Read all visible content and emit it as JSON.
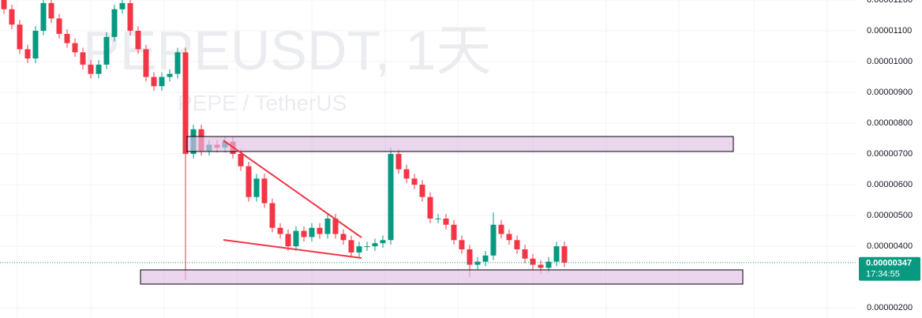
{
  "chart_data": {
    "type": "candlestick",
    "title": "PEPEUSDT, 1天",
    "subtitle": "PEPE / TetherUS",
    "open": [
      1.2e-05,
      1.17e-05,
      1.12e-05,
      1.04e-05,
      1.01e-05,
      1.1e-05,
      1.19e-05,
      1.14e-05,
      1.09e-05,
      1.06e-05,
      1.03e-05,
      9.9e-06,
      9.6e-06,
      9.9e-06,
      1.08e-05,
      1.17e-05,
      1.19e-05,
      1.1e-05,
      1.04e-05,
      9.5e-06,
      9.2e-06,
      9.5e-06,
      9.6e-06,
      1.03e-05,
      7e-06,
      7.8e-06,
      7.1e-06,
      7.3e-06,
      7.2e-06,
      7.4e-06,
      7e-06,
      6.6e-06,
      5.6e-06,
      6.2e-06,
      5.4e-06,
      4.6e-06,
      4.4e-06,
      4e-06,
      4.5e-06,
      4.3e-06,
      4.6e-06,
      4.4e-06,
      4.9e-06,
      4.4e-06,
      4.2e-06,
      3.8e-06,
      4e-06,
      4e-06,
      4.1e-06,
      4.2e-06,
      7e-06,
      6.5e-06,
      6.2e-06,
      6e-06,
      5.6e-06,
      4.9e-06,
      4.9e-06,
      4.7e-06,
      4.2e-06,
      3.9e-06,
      3.4e-06,
      3.5e-06,
      3.7e-06,
      4.7e-06,
      4.4e-06,
      4.2e-06,
      3.9e-06,
      3.6e-06,
      3.4e-06,
      3.3e-06,
      3.5e-06,
      4e-06
    ],
    "high": [
      1.215e-05,
      1.185e-05,
      1.135e-05,
      1.055e-05,
      1.115e-05,
      1.205e-05,
      1.205e-05,
      1.155e-05,
      1.105e-05,
      1.075e-05,
      1.045e-05,
      1.005e-05,
      1.005e-05,
      1.095e-05,
      1.185e-05,
      1.205e-05,
      1.205e-05,
      1.115e-05,
      1.055e-05,
      9.65e-06,
      9.65e-06,
      9.75e-06,
      1.045e-05,
      1.045e-05,
      7.95e-06,
      7.95e-06,
      7.45e-06,
      7.45e-06,
      7.55e-06,
      7.55e-06,
      7.15e-06,
      6.75e-06,
      6.35e-06,
      6.35e-06,
      5.55e-06,
      4.75e-06,
      4.55e-06,
      4.65e-06,
      4.65e-06,
      4.75e-06,
      4.75e-06,
      5.05e-06,
      5.05e-06,
      4.55e-06,
      4.35e-06,
      4.15e-06,
      4.15e-06,
      4.25e-06,
      4.35e-06,
      7.2e-06,
      7.15e-06,
      6.65e-06,
      6.35e-06,
      6.15e-06,
      5.75e-06,
      5.05e-06,
      5.05e-06,
      4.85e-06,
      4.35e-06,
      4.05e-06,
      3.65e-06,
      3.85e-06,
      5.1e-06,
      4.85e-06,
      4.55e-06,
      4.35e-06,
      4.05e-06,
      3.75e-06,
      3.55e-06,
      3.65e-06,
      4.15e-06,
      4.15e-06
    ],
    "low": [
      1.155e-05,
      1.105e-05,
      1.025e-05,
      9.95e-06,
      9.95e-06,
      1.085e-05,
      1.125e-05,
      1.075e-05,
      1.045e-05,
      1.015e-05,
      9.75e-06,
      9.45e-06,
      9.45e-06,
      9.75e-06,
      1.065e-05,
      1.155e-05,
      1.085e-05,
      1.025e-05,
      9.35e-06,
      9.05e-06,
      9.05e-06,
      9.35e-06,
      9.45e-06,
      2.9e-06,
      6.85e-06,
      6.95e-06,
      6.95e-06,
      7.05e-06,
      7.05e-06,
      6.85e-06,
      6.45e-06,
      5.45e-06,
      5.45e-06,
      5.25e-06,
      4.45e-06,
      4.25e-06,
      3.85e-06,
      3.85e-06,
      4.15e-06,
      4.15e-06,
      4.25e-06,
      4.25e-06,
      4.25e-06,
      4.05e-06,
      3.65e-06,
      3.65e-06,
      3.85e-06,
      3.85e-06,
      3.95e-06,
      4.05e-06,
      6.35e-06,
      6.05e-06,
      5.85e-06,
      5.45e-06,
      4.75e-06,
      4.75e-06,
      4.55e-06,
      4.05e-06,
      3.75e-06,
      3e-06,
      3.25e-06,
      3.35e-06,
      3.55e-06,
      4.25e-06,
      4.05e-06,
      3.75e-06,
      3.45e-06,
      3.25e-06,
      3.1e-06,
      3.15e-06,
      3.35e-06,
      3.32e-06
    ],
    "close": [
      1.17e-05,
      1.12e-05,
      1.04e-05,
      1.01e-05,
      1.1e-05,
      1.19e-05,
      1.14e-05,
      1.09e-05,
      1.06e-05,
      1.03e-05,
      9.9e-06,
      9.6e-06,
      9.9e-06,
      1.08e-05,
      1.17e-05,
      1.19e-05,
      1.1e-05,
      1.04e-05,
      9.5e-06,
      9.2e-06,
      9.5e-06,
      9.6e-06,
      1.03e-05,
      7e-06,
      7.8e-06,
      7.1e-06,
      7.3e-06,
      7.2e-06,
      7.4e-06,
      7e-06,
      6.6e-06,
      5.6e-06,
      6.2e-06,
      5.4e-06,
      4.6e-06,
      4.4e-06,
      4e-06,
      4.5e-06,
      4.3e-06,
      4.6e-06,
      4.4e-06,
      4.9e-06,
      4.4e-06,
      4.2e-06,
      3.8e-06,
      4e-06,
      4e-06,
      4.1e-06,
      4.2e-06,
      7e-06,
      6.5e-06,
      6.2e-06,
      6e-06,
      5.6e-06,
      4.9e-06,
      4.9e-06,
      4.7e-06,
      4.2e-06,
      3.9e-06,
      3.4e-06,
      3.5e-06,
      3.7e-06,
      4.7e-06,
      4.4e-06,
      4.2e-06,
      3.9e-06,
      3.6e-06,
      3.4e-06,
      3.3e-06,
      3.5e-06,
      4e-06,
      3.47e-06
    ],
    "up_color": "#089981",
    "down_color": "#f23645",
    "ylim": [
      1.67e-06,
      1.2e-05
    ],
    "yticks": [
      {
        "value": 1.2e-05,
        "label": "0.00001200"
      },
      {
        "value": 1.1e-05,
        "label": "0.00001100"
      },
      {
        "value": 1e-05,
        "label": "0.00001000"
      },
      {
        "value": 9e-06,
        "label": "0.00000900"
      },
      {
        "value": 8e-06,
        "label": "0.00000800"
      },
      {
        "value": 7e-06,
        "label": "0.00000700"
      },
      {
        "value": 6e-06,
        "label": "0.00000600"
      },
      {
        "value": 5e-06,
        "label": "0.00000500"
      },
      {
        "value": 4e-06,
        "label": "0.00000400"
      },
      {
        "value": 2e-06,
        "label": "0.00000200"
      }
    ],
    "grid": true,
    "last_price": {
      "value": 3.47e-06,
      "label": "0.00000347"
    },
    "countdown": "17:34:55"
  }
}
